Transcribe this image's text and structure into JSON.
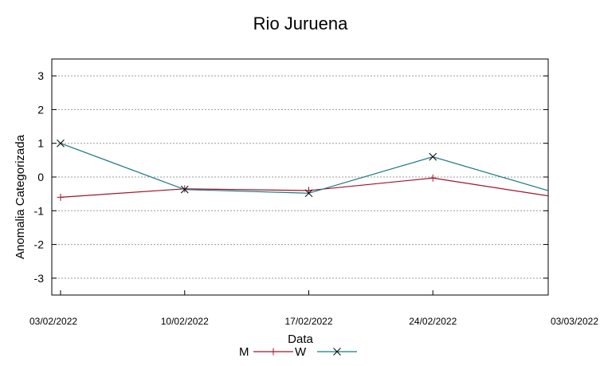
{
  "chart_data": {
    "type": "line",
    "title": "Rio Juruena",
    "xlabel": "Data",
    "ylabel": "Anomalia Categorizada",
    "categories": [
      "03/02/2022",
      "10/02/2022",
      "17/02/2022",
      "24/02/2022",
      "03/03/2022"
    ],
    "ylim": [
      -3.5,
      3.5
    ],
    "yticks": [
      3,
      2,
      1,
      0,
      -1,
      -2,
      -3
    ],
    "grid": true,
    "legend_position": "bottom",
    "series": [
      {
        "name": "M",
        "marker": "+",
        "color": "#a0142a",
        "values": [
          -0.6,
          -0.35,
          -0.4,
          -0.03,
          -0.6
        ]
      },
      {
        "name": "W",
        "marker": "x",
        "color": "#1a7a7f",
        "values": [
          1.0,
          -0.37,
          -0.48,
          0.6,
          -0.48
        ]
      }
    ]
  }
}
